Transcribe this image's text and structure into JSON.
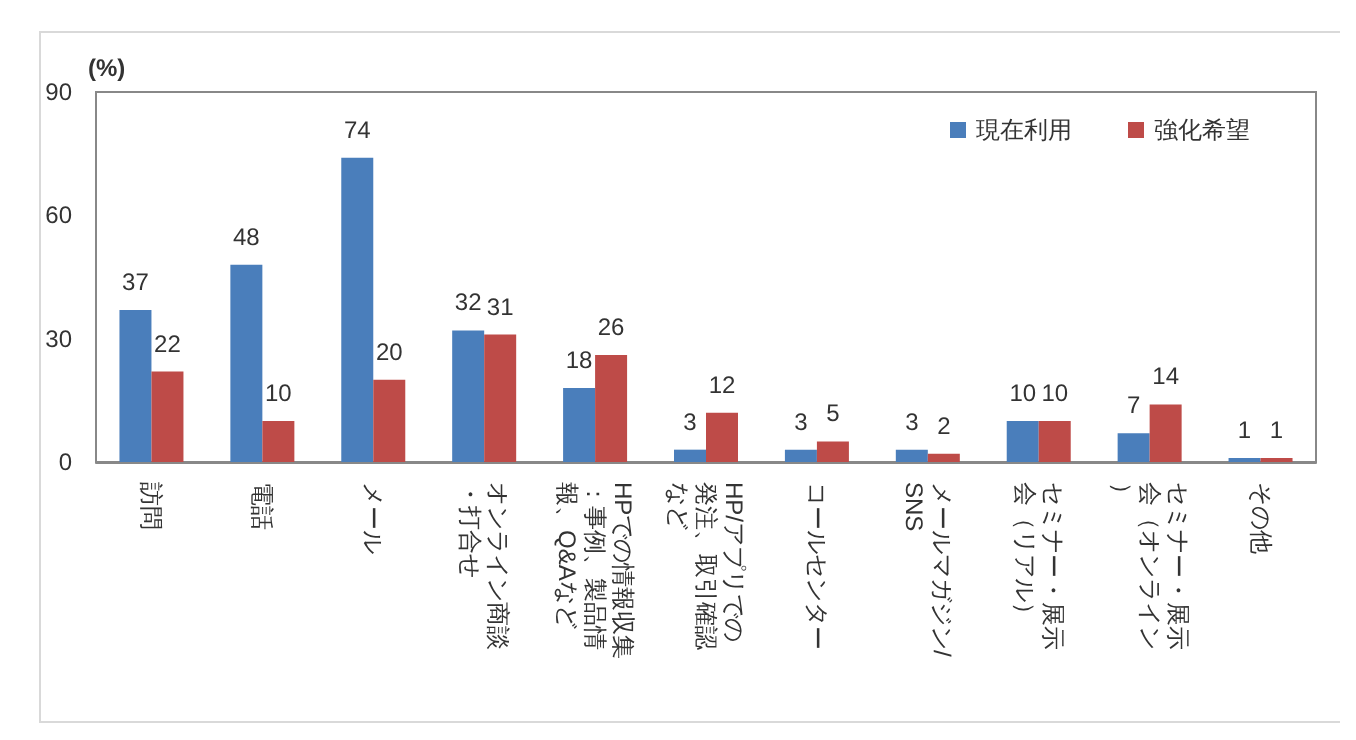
{
  "chart_data": {
    "type": "bar",
    "ylabel": "(%)",
    "categories": [
      "訪問",
      "電話",
      "メール",
      "オンライン商談・打合せ",
      "HPでの情報収集：事例、製品情報、Q&Aなど",
      "HP/アプリでの発注、取引確認など",
      "コールセンター",
      "メールマガジン/SNS",
      "セミナー・展示会（リアル）",
      "セミナー・展示会（オンライン）",
      "その他"
    ],
    "series": [
      {
        "name": "現在利用",
        "color": "#4a7ebb",
        "values": [
          37,
          48,
          74,
          32,
          18,
          3,
          3,
          3,
          10,
          7,
          1
        ]
      },
      {
        "name": "強化希望",
        "color": "#be4b48",
        "values": [
          22,
          10,
          20,
          31,
          26,
          12,
          5,
          2,
          10,
          14,
          1
        ]
      }
    ],
    "ylim": [
      0,
      90
    ],
    "yticks": [
      0,
      30,
      60,
      90
    ],
    "grid": false,
    "legend": "top right",
    "data_labels": true
  }
}
